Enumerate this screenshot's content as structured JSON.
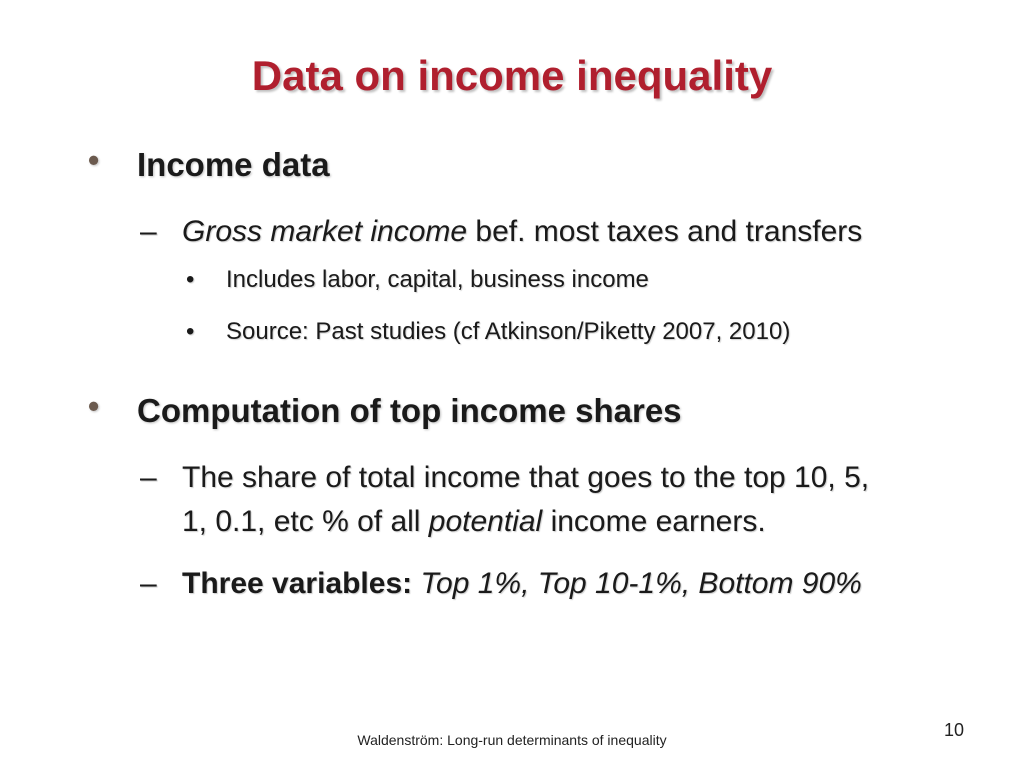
{
  "slide": {
    "title": "Data on income inequality",
    "bullet1": {
      "bullet_glyph": "•",
      "heading": "Income data",
      "sub1": {
        "dash": "–",
        "italic": "Gross market income",
        "rest": " bef. most taxes and transfers",
        "items": [
          {
            "dot": "•",
            "text": "Includes labor, capital, business income"
          },
          {
            "dot": "•",
            "text": "Source: Past studies (cf Atkinson/Piketty 2007, 2010)"
          }
        ]
      }
    },
    "bullet2": {
      "bullet_glyph": "•",
      "heading": "Computation of top income shares",
      "sub1": {
        "dash": "–",
        "line1": "The share of total income that goes to the top 10, 5,",
        "line2_pre": "1, 0.1, etc % of all ",
        "line2_italic": "potential",
        "line2_post": " income earners."
      },
      "sub2": {
        "dash": "–",
        "bold": "Three variables:",
        "italic": " Top 1%, Top 10-1%, Bottom 90%"
      }
    },
    "footer": "Waldenström: Long-run determinants of inequality",
    "page_number": "10"
  }
}
